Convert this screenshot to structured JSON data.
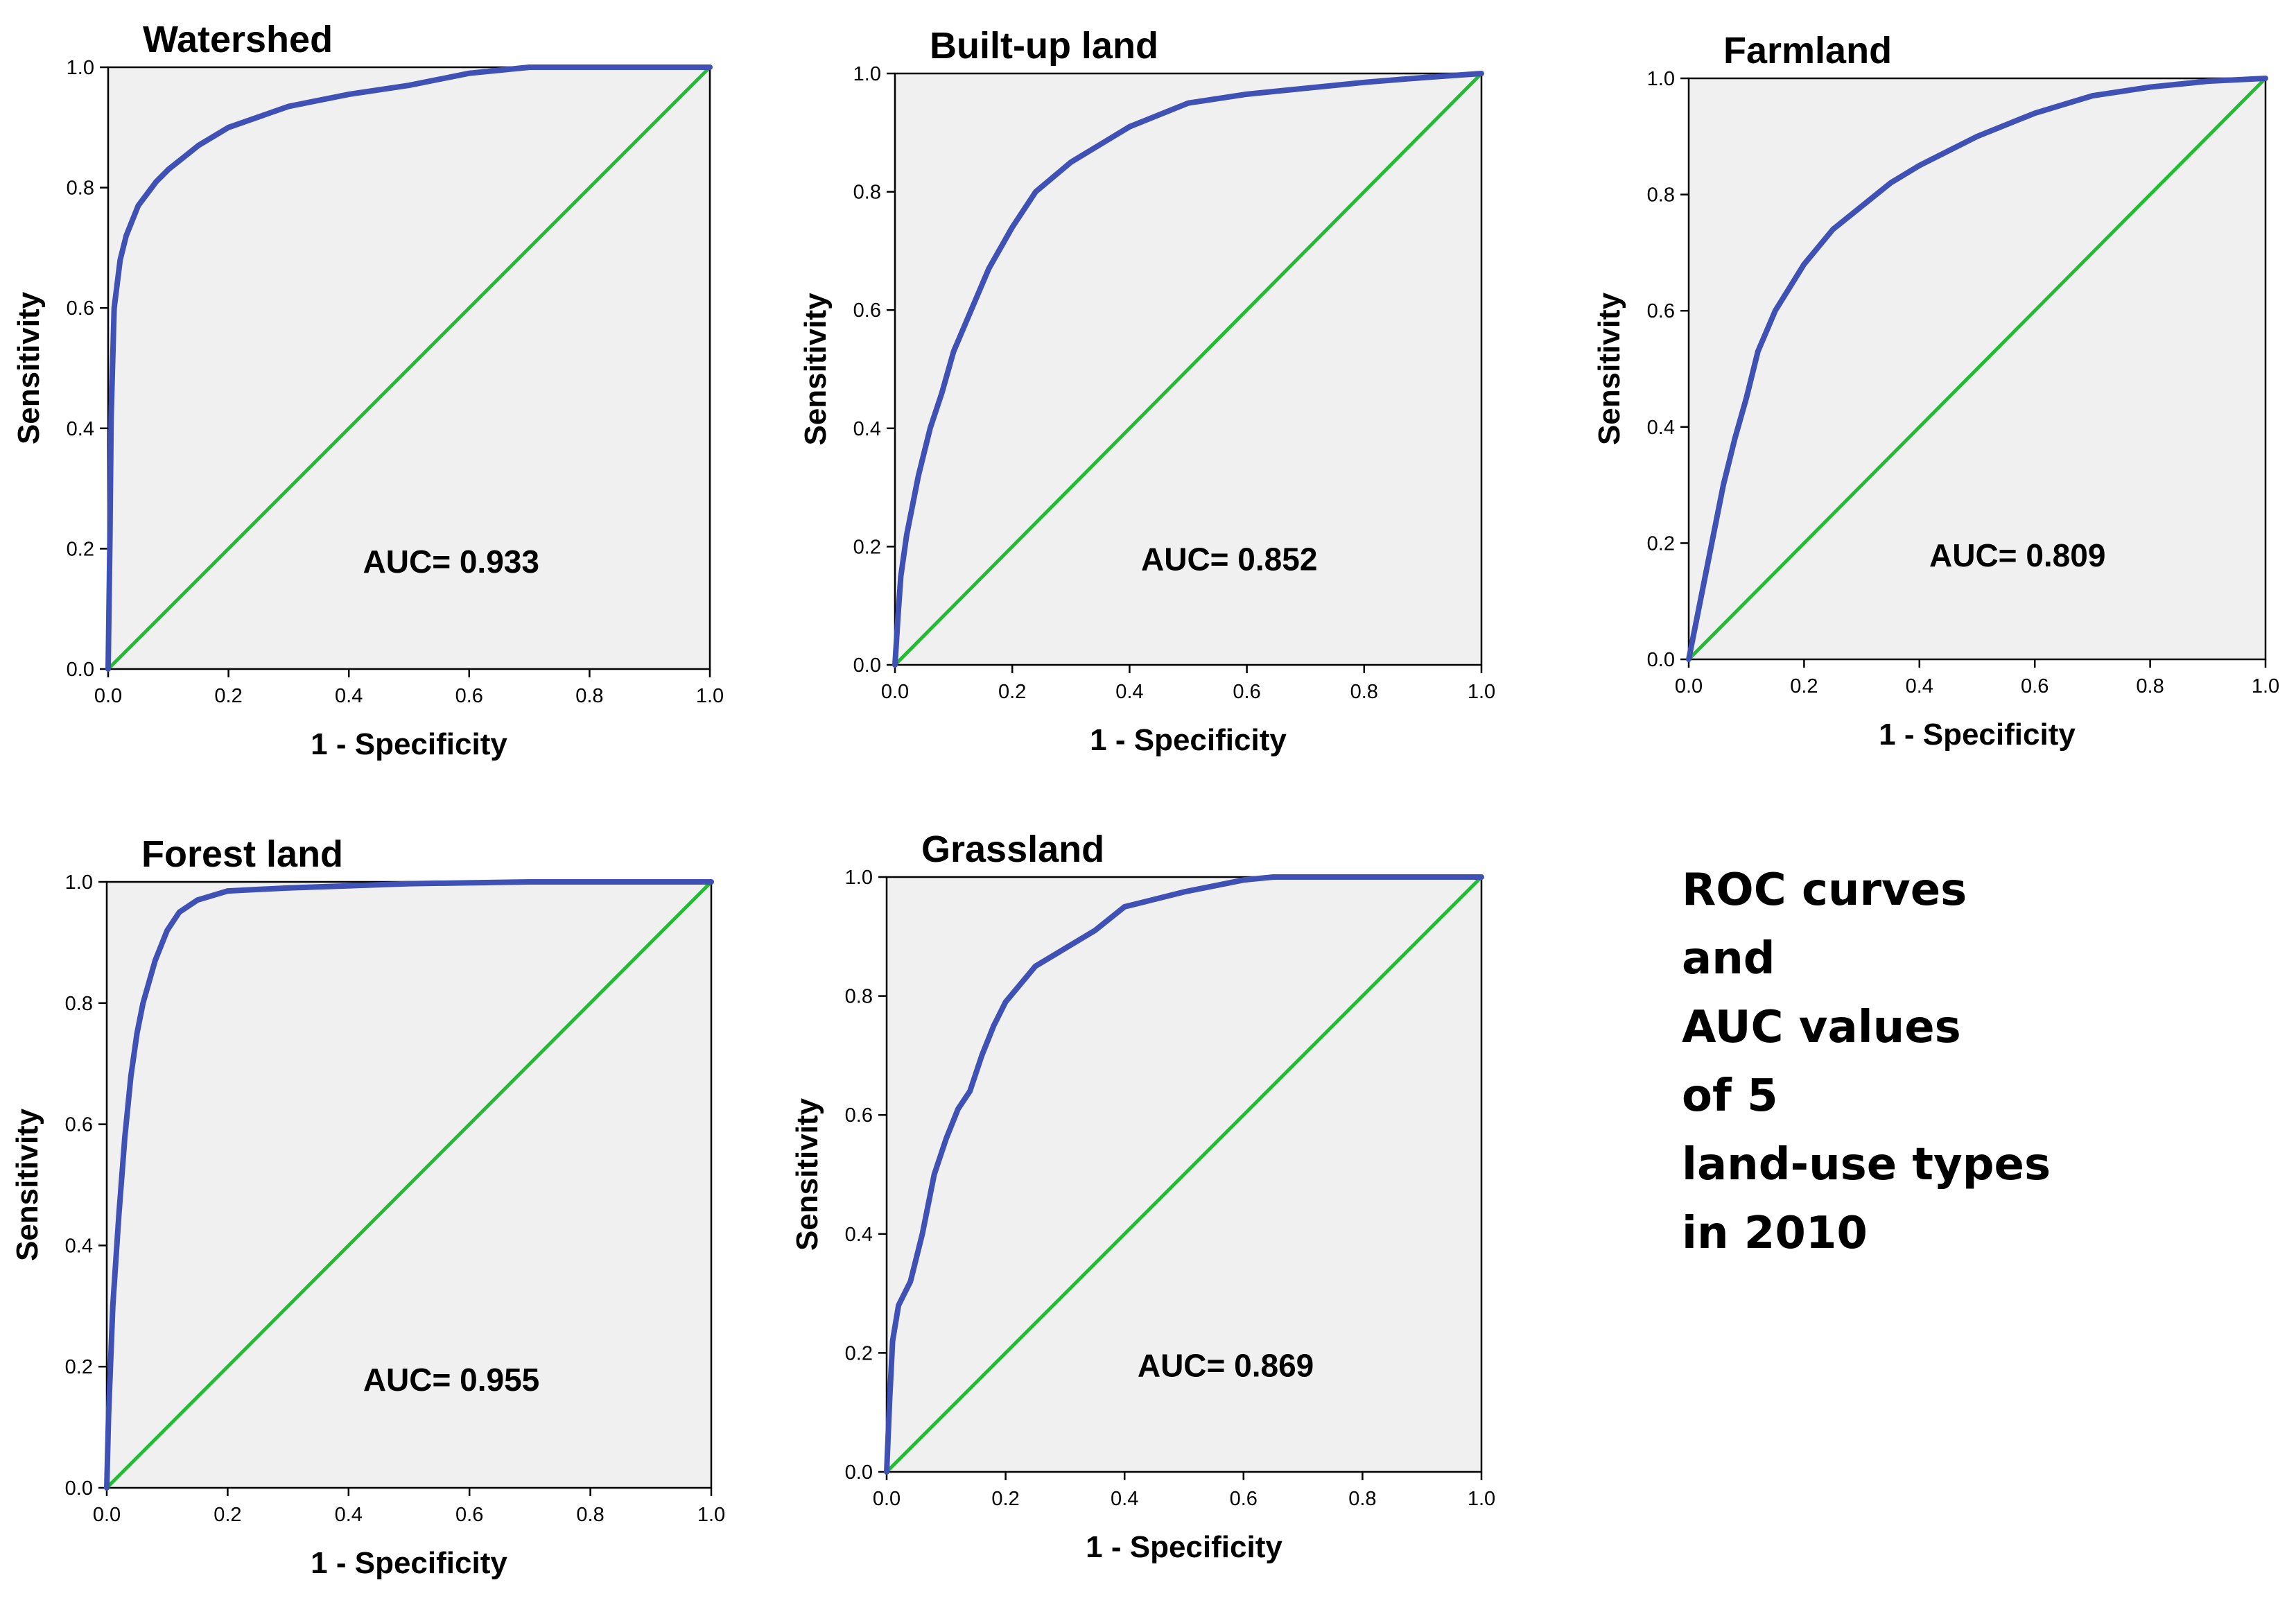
{
  "figure": {
    "caption_lines": [
      "ROC curves",
      "and",
      "AUC values",
      "of 5",
      "land-use types",
      "in 2010"
    ],
    "colors": {
      "plot_background": "#f0f0f0",
      "roc_curve": "#3f51b5",
      "reference_line": "#22bb33",
      "axis": "#000000"
    }
  },
  "chart_data": [
    {
      "type": "line",
      "title": "Watershed",
      "xlabel": "1 - Specificity",
      "ylabel": "Sensitivity",
      "xlim": [
        0,
        1
      ],
      "ylim": [
        0,
        1
      ],
      "xticks": [
        "0.0",
        "0.2",
        "0.4",
        "0.6",
        "0.8",
        "1.0"
      ],
      "yticks": [
        "0.0",
        "0.2",
        "0.4",
        "0.6",
        "0.8",
        "1.0"
      ],
      "annotation": "AUC= 0.933",
      "series": [
        {
          "name": "ROC curve",
          "x": [
            0,
            0.003,
            0.005,
            0.01,
            0.02,
            0.03,
            0.05,
            0.08,
            0.1,
            0.15,
            0.2,
            0.3,
            0.4,
            0.5,
            0.6,
            0.7,
            1.0
          ],
          "y": [
            0,
            0.22,
            0.42,
            0.6,
            0.68,
            0.72,
            0.77,
            0.81,
            0.83,
            0.87,
            0.9,
            0.935,
            0.955,
            0.97,
            0.99,
            1.0,
            1.0
          ]
        },
        {
          "name": "Reference line",
          "x": [
            0,
            1
          ],
          "y": [
            0,
            1
          ]
        }
      ]
    },
    {
      "type": "line",
      "title": "Built-up land",
      "xlabel": "1 - Specificity",
      "ylabel": "Sensitivity",
      "xlim": [
        0,
        1
      ],
      "ylim": [
        0,
        1
      ],
      "xticks": [
        "0.0",
        "0.2",
        "0.4",
        "0.6",
        "0.8",
        "1.0"
      ],
      "yticks": [
        "0.0",
        "0.2",
        "0.4",
        "0.6",
        "0.8",
        "1.0"
      ],
      "annotation": "AUC= 0.852",
      "series": [
        {
          "name": "ROC curve",
          "x": [
            0,
            0.005,
            0.01,
            0.02,
            0.04,
            0.06,
            0.08,
            0.1,
            0.13,
            0.16,
            0.2,
            0.24,
            0.3,
            0.35,
            0.4,
            0.5,
            0.6,
            0.7,
            0.8,
            0.9,
            1.0
          ],
          "y": [
            0,
            0.08,
            0.15,
            0.22,
            0.32,
            0.4,
            0.46,
            0.53,
            0.6,
            0.67,
            0.74,
            0.8,
            0.85,
            0.88,
            0.91,
            0.95,
            0.965,
            0.975,
            0.985,
            0.993,
            1.0
          ]
        },
        {
          "name": "Reference line",
          "x": [
            0,
            1
          ],
          "y": [
            0,
            1
          ]
        }
      ]
    },
    {
      "type": "line",
      "title": "Farmland",
      "xlabel": "1 - Specificity",
      "ylabel": "Sensitivity",
      "xlim": [
        0,
        1
      ],
      "ylim": [
        0,
        1
      ],
      "xticks": [
        "0.0",
        "0.2",
        "0.4",
        "0.6",
        "0.8",
        "1.0"
      ],
      "yticks": [
        "0.0",
        "0.2",
        "0.4",
        "0.6",
        "0.8",
        "1.0"
      ],
      "annotation": "AUC= 0.809",
      "series": [
        {
          "name": "ROC curve",
          "x": [
            0,
            0.01,
            0.02,
            0.04,
            0.06,
            0.08,
            0.1,
            0.12,
            0.15,
            0.2,
            0.25,
            0.3,
            0.35,
            0.4,
            0.5,
            0.6,
            0.7,
            0.8,
            0.9,
            1.0
          ],
          "y": [
            0,
            0.05,
            0.1,
            0.2,
            0.3,
            0.38,
            0.45,
            0.53,
            0.6,
            0.68,
            0.74,
            0.78,
            0.82,
            0.85,
            0.9,
            0.94,
            0.97,
            0.985,
            0.995,
            1.0
          ]
        },
        {
          "name": "Reference line",
          "x": [
            0,
            1
          ],
          "y": [
            0,
            1
          ]
        }
      ]
    },
    {
      "type": "line",
      "title": "Forest land",
      "xlabel": "1 - Specificity",
      "ylabel": "Sensitivity",
      "xlim": [
        0,
        1
      ],
      "ylim": [
        0,
        1
      ],
      "xticks": [
        "0.0",
        "0.2",
        "0.4",
        "0.6",
        "0.8",
        "1.0"
      ],
      "yticks": [
        "0.0",
        "0.2",
        "0.4",
        "0.6",
        "0.8",
        "1.0"
      ],
      "annotation": "AUC= 0.955",
      "series": [
        {
          "name": "ROC curve",
          "x": [
            0,
            0.003,
            0.01,
            0.02,
            0.03,
            0.04,
            0.05,
            0.06,
            0.08,
            0.1,
            0.12,
            0.15,
            0.2,
            0.3,
            0.5,
            0.7,
            1.0
          ],
          "y": [
            0,
            0.12,
            0.3,
            0.45,
            0.58,
            0.68,
            0.75,
            0.8,
            0.87,
            0.92,
            0.95,
            0.97,
            0.985,
            0.99,
            0.997,
            1.0,
            1.0
          ]
        },
        {
          "name": "Reference line",
          "x": [
            0,
            1
          ],
          "y": [
            0,
            1
          ]
        }
      ]
    },
    {
      "type": "line",
      "title": "Grassland",
      "xlabel": "1 - Specificity",
      "ylabel": "Sensitivity",
      "xlim": [
        0,
        1
      ],
      "ylim": [
        0,
        1
      ],
      "xticks": [
        "0.0",
        "0.2",
        "0.4",
        "0.6",
        "0.8",
        "1.0"
      ],
      "yticks": [
        "0.0",
        "0.2",
        "0.4",
        "0.6",
        "0.8",
        "1.0"
      ],
      "annotation": "AUC= 0.869",
      "series": [
        {
          "name": "ROC curve",
          "x": [
            0,
            0.005,
            0.01,
            0.02,
            0.04,
            0.06,
            0.08,
            0.1,
            0.12,
            0.14,
            0.16,
            0.18,
            0.2,
            0.25,
            0.3,
            0.35,
            0.4,
            0.5,
            0.6,
            0.65,
            1.0
          ],
          "y": [
            0,
            0.12,
            0.22,
            0.28,
            0.32,
            0.4,
            0.5,
            0.56,
            0.61,
            0.64,
            0.7,
            0.75,
            0.79,
            0.85,
            0.88,
            0.91,
            0.95,
            0.975,
            0.995,
            1.0,
            1.0
          ]
        },
        {
          "name": "Reference line",
          "x": [
            0,
            1
          ],
          "y": [
            0,
            1
          ]
        }
      ]
    }
  ]
}
